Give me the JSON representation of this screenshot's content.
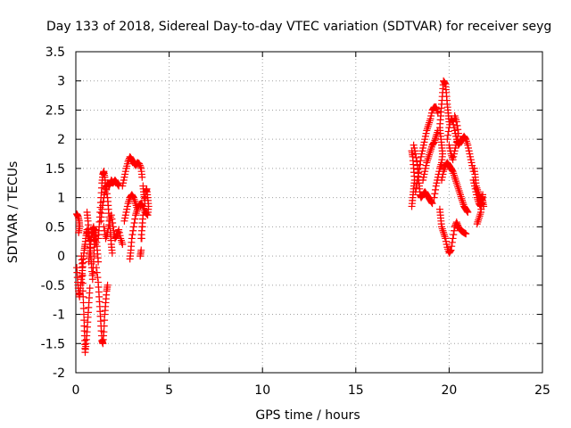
{
  "chart_data": {
    "type": "scatter",
    "title": "Day 133 of 2018, Sidereal Day-to-day VTEC variation (SDTVAR) for receiver seyg",
    "xlabel": "GPS time / hours",
    "ylabel": "SDTVAR / TECUs",
    "xlim": [
      0,
      25
    ],
    "ylim": [
      -2,
      3.5
    ],
    "xticks": [
      "0",
      "5",
      "10",
      "15",
      "20",
      "25"
    ],
    "yticks": [
      "-2",
      "-1.5",
      "-1",
      "-0.5",
      "0",
      "0.5",
      "1",
      "1.5",
      "2",
      "2.5",
      "3",
      "3.5"
    ],
    "grid": true,
    "marker": "+",
    "color": "#ff0000",
    "segments": [
      [
        [
          0.05,
          0.72
        ],
        [
          0.12,
          0.68
        ],
        [
          0.18,
          0.6
        ],
        [
          0.2,
          0.5
        ],
        [
          0.15,
          0.4
        ]
      ],
      [
        [
          0.05,
          -0.2
        ],
        [
          0.1,
          -0.45
        ],
        [
          0.15,
          -0.6
        ],
        [
          0.2,
          -0.7
        ],
        [
          0.25,
          -0.55
        ],
        [
          0.3,
          -0.4
        ],
        [
          0.35,
          -0.25
        ],
        [
          0.4,
          -0.05
        ],
        [
          0.45,
          0.1
        ],
        [
          0.5,
          0.2
        ],
        [
          0.55,
          0.35
        ],
        [
          0.6,
          0.45
        ],
        [
          0.65,
          0.3
        ]
      ],
      [
        [
          0.3,
          0.0
        ],
        [
          0.35,
          -0.2
        ],
        [
          0.38,
          -0.6
        ],
        [
          0.42,
          -0.9
        ],
        [
          0.45,
          -1.2
        ],
        [
          0.48,
          -1.45
        ],
        [
          0.5,
          -1.65
        ],
        [
          0.55,
          -1.5
        ],
        [
          0.6,
          -1.3
        ],
        [
          0.65,
          -1.05
        ],
        [
          0.7,
          -0.8
        ],
        [
          0.75,
          -0.55
        ]
      ],
      [
        [
          0.6,
          0.75
        ],
        [
          0.65,
          0.6
        ],
        [
          0.7,
          0.4
        ],
        [
          0.75,
          0.2
        ],
        [
          0.8,
          0.0
        ],
        [
          0.85,
          -0.2
        ],
        [
          0.9,
          -0.4
        ],
        [
          0.95,
          -0.1
        ],
        [
          1.0,
          0.2
        ],
        [
          1.05,
          0.45
        ],
        [
          1.1,
          0.3
        ],
        [
          1.15,
          0.1
        ],
        [
          1.2,
          -0.1
        ]
      ],
      [
        [
          0.7,
          -0.1
        ],
        [
          0.75,
          0.1
        ],
        [
          0.8,
          0.25
        ],
        [
          0.85,
          0.35
        ],
        [
          0.9,
          0.45
        ],
        [
          0.95,
          0.5
        ],
        [
          1.0,
          0.4
        ],
        [
          1.05,
          0.2
        ]
      ],
      [
        [
          1.1,
          -0.2
        ],
        [
          1.2,
          -0.45
        ],
        [
          1.25,
          -0.7
        ],
        [
          1.3,
          -0.95
        ],
        [
          1.35,
          -1.2
        ],
        [
          1.4,
          -1.45
        ],
        [
          1.45,
          -1.5
        ],
        [
          1.5,
          -1.3
        ],
        [
          1.55,
          -1.0
        ],
        [
          1.6,
          -0.8
        ],
        [
          1.65,
          -0.6
        ],
        [
          1.7,
          -0.5
        ]
      ],
      [
        [
          1.2,
          0.3
        ],
        [
          1.25,
          0.5
        ],
        [
          1.3,
          0.75
        ],
        [
          1.35,
          1.0
        ],
        [
          1.4,
          1.25
        ],
        [
          1.45,
          1.4
        ],
        [
          1.5,
          1.45
        ],
        [
          1.55,
          1.35
        ],
        [
          1.6,
          1.2
        ],
        [
          1.7,
          1.0
        ],
        [
          1.75,
          0.8
        ],
        [
          1.8,
          0.6
        ],
        [
          1.85,
          0.4
        ],
        [
          1.9,
          0.2
        ],
        [
          1.95,
          0.05
        ]
      ],
      [
        [
          1.35,
          0.6
        ],
        [
          1.4,
          0.8
        ],
        [
          1.5,
          1.0
        ],
        [
          1.6,
          1.15
        ],
        [
          1.7,
          1.25
        ],
        [
          1.8,
          1.2
        ],
        [
          1.9,
          1.3
        ],
        [
          2.0,
          1.25
        ],
        [
          2.1,
          1.3
        ],
        [
          2.2,
          1.25
        ],
        [
          2.3,
          1.2
        ]
      ],
      [
        [
          1.5,
          0.5
        ],
        [
          1.6,
          0.3
        ],
        [
          1.7,
          0.4
        ],
        [
          1.8,
          0.6
        ],
        [
          1.9,
          0.7
        ],
        [
          2.0,
          0.5
        ],
        [
          2.1,
          0.3
        ],
        [
          2.2,
          0.35
        ],
        [
          2.3,
          0.45
        ],
        [
          2.4,
          0.3
        ],
        [
          2.5,
          0.2
        ]
      ],
      [
        [
          2.5,
          1.2
        ],
        [
          2.6,
          1.35
        ],
        [
          2.7,
          1.5
        ],
        [
          2.8,
          1.62
        ],
        [
          2.9,
          1.7
        ],
        [
          3.0,
          1.65
        ],
        [
          3.1,
          1.6
        ],
        [
          3.2,
          1.55
        ],
        [
          3.3,
          1.6
        ],
        [
          3.4,
          1.58
        ],
        [
          3.5,
          1.5
        ],
        [
          3.55,
          1.35
        ]
      ],
      [
        [
          3.6,
          1.2
        ],
        [
          3.65,
          1.05
        ],
        [
          3.7,
          0.95
        ],
        [
          3.75,
          1.1
        ],
        [
          3.8,
          1.15
        ],
        [
          3.85,
          1.0
        ],
        [
          3.9,
          0.85
        ],
        [
          3.85,
          0.7
        ],
        [
          3.7,
          0.75
        ],
        [
          3.6,
          0.85
        ],
        [
          3.5,
          0.9
        ],
        [
          3.4,
          0.88
        ],
        [
          3.3,
          0.8
        ],
        [
          3.2,
          0.7
        ],
        [
          3.1,
          0.5
        ],
        [
          3.0,
          0.3
        ],
        [
          2.95,
          0.1
        ],
        [
          2.9,
          -0.05
        ]
      ],
      [
        [
          2.6,
          0.6
        ],
        [
          2.7,
          0.75
        ],
        [
          2.8,
          0.9
        ],
        [
          2.9,
          1.0
        ],
        [
          3.0,
          1.05
        ],
        [
          3.1,
          1.0
        ],
        [
          3.2,
          0.9
        ],
        [
          3.3,
          0.8
        ]
      ],
      [
        [
          3.5,
          0.3
        ],
        [
          3.55,
          0.5
        ],
        [
          3.6,
          0.7
        ],
        [
          3.5,
          0.1
        ],
        [
          3.45,
          0.0
        ]
      ],
      [
        [
          18.0,
          0.85
        ],
        [
          18.05,
          1.0
        ],
        [
          18.1,
          1.15
        ],
        [
          18.15,
          1.3
        ],
        [
          18.1,
          1.5
        ],
        [
          18.05,
          1.7
        ],
        [
          18.0,
          1.8
        ]
      ],
      [
        [
          18.1,
          1.9
        ],
        [
          18.2,
          1.75
        ],
        [
          18.3,
          1.55
        ],
        [
          18.35,
          1.35
        ],
        [
          18.4,
          1.2
        ],
        [
          18.45,
          1.05
        ],
        [
          18.5,
          1.0
        ],
        [
          18.6,
          1.05
        ],
        [
          18.7,
          1.1
        ],
        [
          18.8,
          1.05
        ],
        [
          18.9,
          1.0
        ],
        [
          19.0,
          0.95
        ],
        [
          19.1,
          0.9
        ]
      ],
      [
        [
          18.2,
          1.1
        ],
        [
          18.3,
          1.3
        ],
        [
          18.4,
          1.5
        ],
        [
          18.5,
          1.7
        ],
        [
          18.6,
          1.85
        ],
        [
          18.7,
          2.0
        ],
        [
          18.8,
          2.15
        ],
        [
          18.9,
          2.25
        ],
        [
          19.0,
          2.35
        ],
        [
          19.1,
          2.5
        ],
        [
          19.2,
          2.55
        ],
        [
          19.3,
          2.55
        ],
        [
          19.4,
          2.45
        ]
      ],
      [
        [
          18.6,
          1.3
        ],
        [
          18.7,
          1.45
        ],
        [
          18.8,
          1.6
        ],
        [
          18.9,
          1.7
        ],
        [
          19.0,
          1.8
        ],
        [
          19.1,
          1.9
        ],
        [
          19.2,
          1.95
        ],
        [
          19.3,
          2.05
        ],
        [
          19.4,
          2.15
        ]
      ],
      [
        [
          19.2,
          1.0
        ],
        [
          19.3,
          1.2
        ],
        [
          19.4,
          1.35
        ],
        [
          19.5,
          1.5
        ],
        [
          19.6,
          1.6
        ],
        [
          19.65,
          1.75
        ],
        [
          19.6,
          1.9
        ],
        [
          19.55,
          2.05
        ],
        [
          19.5,
          2.2
        ],
        [
          19.55,
          2.4
        ],
        [
          19.6,
          2.6
        ],
        [
          19.65,
          2.8
        ],
        [
          19.7,
          3.0
        ],
        [
          19.8,
          2.95
        ],
        [
          19.85,
          2.8
        ],
        [
          19.9,
          2.6
        ],
        [
          19.95,
          2.45
        ],
        [
          20.0,
          2.3
        ]
      ],
      [
        [
          19.5,
          0.8
        ],
        [
          19.55,
          0.65
        ],
        [
          19.6,
          0.5
        ],
        [
          19.7,
          0.4
        ],
        [
          19.8,
          0.3
        ],
        [
          19.9,
          0.15
        ],
        [
          20.0,
          0.05
        ],
        [
          20.1,
          0.1
        ],
        [
          20.2,
          0.3
        ],
        [
          20.3,
          0.5
        ],
        [
          20.4,
          0.58
        ],
        [
          20.5,
          0.5
        ],
        [
          20.6,
          0.45
        ],
        [
          20.7,
          0.42
        ],
        [
          20.8,
          0.4
        ],
        [
          20.9,
          0.38
        ]
      ],
      [
        [
          19.6,
          1.3
        ],
        [
          19.7,
          1.45
        ],
        [
          19.8,
          1.55
        ],
        [
          19.9,
          1.6
        ],
        [
          20.0,
          1.55
        ],
        [
          20.1,
          1.5
        ],
        [
          20.2,
          1.45
        ],
        [
          20.3,
          1.35
        ],
        [
          20.4,
          1.25
        ],
        [
          20.5,
          1.15
        ],
        [
          20.6,
          1.05
        ],
        [
          20.7,
          0.95
        ],
        [
          20.8,
          0.85
        ],
        [
          20.9,
          0.8
        ],
        [
          21.0,
          0.75
        ]
      ],
      [
        [
          19.9,
          2.0
        ],
        [
          20.0,
          2.2
        ],
        [
          20.1,
          2.35
        ],
        [
          20.2,
          2.3
        ],
        [
          20.3,
          2.15
        ],
        [
          20.4,
          2.0
        ],
        [
          20.5,
          1.9
        ],
        [
          20.6,
          1.95
        ],
        [
          20.7,
          2.0
        ],
        [
          20.8,
          2.05
        ],
        [
          20.9,
          2.0
        ],
        [
          21.0,
          1.9
        ],
        [
          21.1,
          1.75
        ],
        [
          21.2,
          1.6
        ],
        [
          21.3,
          1.45
        ]
      ],
      [
        [
          20.0,
          1.9
        ],
        [
          20.1,
          1.75
        ],
        [
          20.2,
          1.65
        ],
        [
          20.3,
          1.8
        ],
        [
          20.4,
          1.95
        ],
        [
          20.5,
          2.1
        ],
        [
          20.4,
          2.3
        ],
        [
          20.3,
          2.4
        ]
      ],
      [
        [
          21.3,
          1.3
        ],
        [
          21.4,
          1.15
        ],
        [
          21.5,
          1.0
        ],
        [
          21.6,
          0.9
        ],
        [
          21.7,
          0.85
        ],
        [
          21.75,
          0.95
        ],
        [
          21.8,
          1.05
        ],
        [
          21.75,
          0.9
        ],
        [
          21.7,
          0.75
        ],
        [
          21.6,
          0.65
        ],
        [
          21.5,
          0.55
        ]
      ],
      [
        [
          21.35,
          1.5
        ],
        [
          21.4,
          1.35
        ],
        [
          21.45,
          1.2
        ],
        [
          21.55,
          1.1
        ],
        [
          21.65,
          1.0
        ],
        [
          21.8,
          0.95
        ],
        [
          21.85,
          0.85
        ]
      ]
    ]
  }
}
